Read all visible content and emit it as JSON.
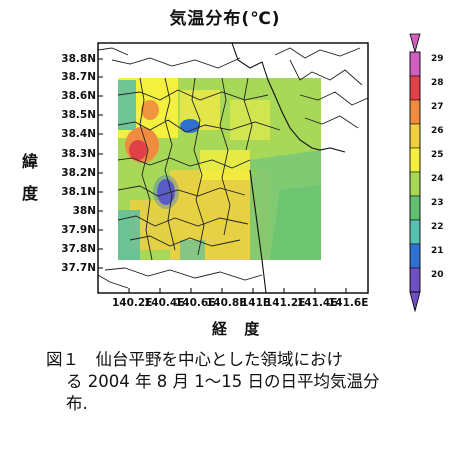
{
  "title": "気温分布(℃)",
  "y_axis_label": [
    "緯",
    "度"
  ],
  "x_axis_label": "経 度",
  "y_ticks": [
    "38.8N",
    "38.7N",
    "38.6N",
    "38.5N",
    "38.4N",
    "38.3N",
    "38.2N",
    "38.1N",
    "38N",
    "37.9N",
    "37.8N",
    "37.7N"
  ],
  "x_ticks": [
    "140.2E",
    "140.4E",
    "140.6E",
    "140.8E",
    "141E",
    "141.2E",
    "141.4E",
    "141.6E"
  ],
  "colorbar": {
    "labels": [
      "29",
      "28",
      "27",
      "26",
      "25",
      "24",
      "23",
      "22",
      "21",
      "20"
    ],
    "colors": [
      "#d060c0",
      "#e04048",
      "#f08c40",
      "#f0d040",
      "#f4f040",
      "#a8d858",
      "#60c070",
      "#58c0b0",
      "#3070d0",
      "#7050c0"
    ]
  },
  "caption": {
    "line1": "図１　仙台平野を中心とした領域におけ",
    "line2": "る 2004 年 8 月 1～15 日の日平均気温分",
    "line3": "布."
  }
}
